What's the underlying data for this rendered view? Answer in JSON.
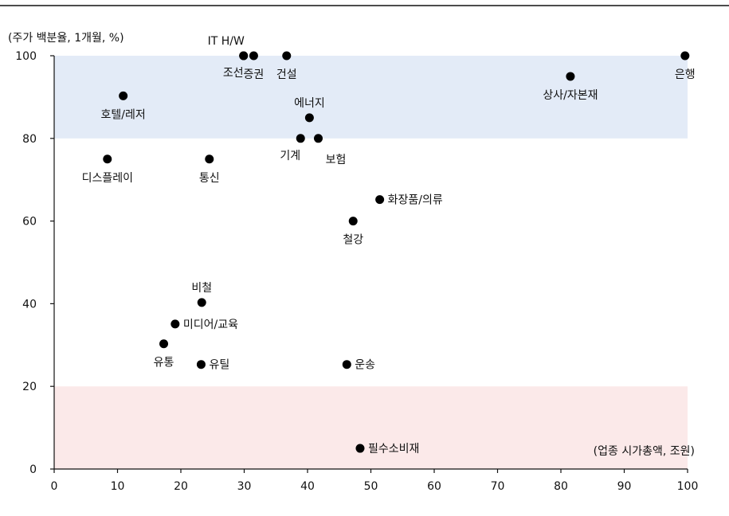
{
  "chart_data": {
    "type": "scatter",
    "y_unit_label": "(주가 백분율, 1개월, %)",
    "x_unit_label": "(업종 시가총액, 조원)",
    "xlim": [
      0,
      100
    ],
    "ylim": [
      0,
      100
    ],
    "x_ticks": [
      "0",
      "10",
      "20",
      "30",
      "40",
      "50",
      "60",
      "70",
      "80",
      "90",
      "100"
    ],
    "y_ticks": [
      "0",
      "20",
      "40",
      "60",
      "80",
      "100"
    ],
    "bands": [
      {
        "y_from": 80,
        "y_to": 100,
        "color": "#e3ebf7"
      },
      {
        "y_from": 0,
        "y_to": 20,
        "color": "#fbe9e9"
      }
    ],
    "grid": false,
    "marker_color": "#000000",
    "points": [
      {
        "label": "IT H/W",
        "x": 29.9,
        "y": 100,
        "label_pos": "above-left"
      },
      {
        "label": "조선",
        "x": 29.9,
        "y": 100,
        "label_pos": "below-left"
      },
      {
        "label": "증권",
        "x": 31.5,
        "y": 100,
        "label_pos": "below"
      },
      {
        "label": "건설",
        "x": 36.7,
        "y": 100,
        "label_pos": "below"
      },
      {
        "label": "은행",
        "x": 99.6,
        "y": 100,
        "label_pos": "below"
      },
      {
        "label": "상사/자본재",
        "x": 81.5,
        "y": 95,
        "label_pos": "below"
      },
      {
        "label": "호텔/레저",
        "x": 10.9,
        "y": 90.3,
        "label_pos": "below"
      },
      {
        "label": "에너지",
        "x": 40.3,
        "y": 85,
        "label_pos": "above"
      },
      {
        "label": "기계",
        "x": 38.9,
        "y": 80,
        "label_pos": "below-left"
      },
      {
        "label": "보험",
        "x": 41.7,
        "y": 80,
        "label_pos": "below-right"
      },
      {
        "label": "디스플레이",
        "x": 8.4,
        "y": 75,
        "label_pos": "below"
      },
      {
        "label": "통신",
        "x": 24.5,
        "y": 75,
        "label_pos": "below"
      },
      {
        "label": "화장품/의류",
        "x": 51.4,
        "y": 65.2,
        "label_pos": "right"
      },
      {
        "label": "철강",
        "x": 47.2,
        "y": 60,
        "label_pos": "below"
      },
      {
        "label": "비철",
        "x": 23.3,
        "y": 40.3,
        "label_pos": "above"
      },
      {
        "label": "미디어/교육",
        "x": 19.1,
        "y": 35.1,
        "label_pos": "right"
      },
      {
        "label": "유통",
        "x": 17.3,
        "y": 30.3,
        "label_pos": "below"
      },
      {
        "label": "유틸",
        "x": 23.2,
        "y": 25.3,
        "label_pos": "right"
      },
      {
        "label": "운송",
        "x": 46.2,
        "y": 25.3,
        "label_pos": "right"
      },
      {
        "label": "필수소비재",
        "x": 48.3,
        "y": 5,
        "label_pos": "right"
      }
    ]
  }
}
